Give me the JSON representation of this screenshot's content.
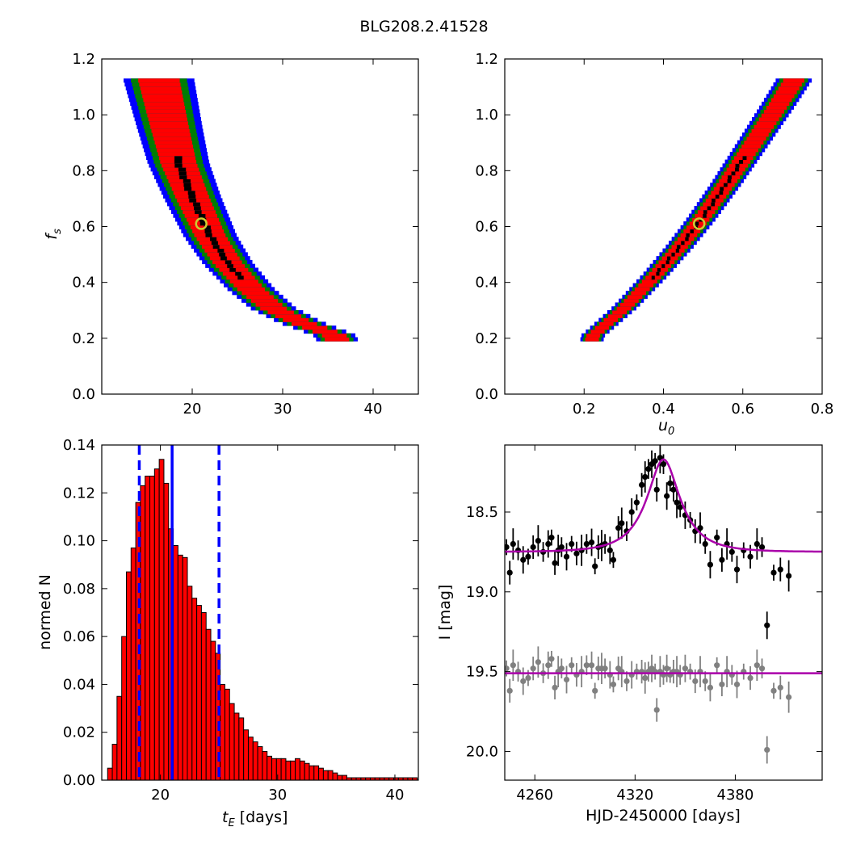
{
  "suptitle": "BLG208.2.41528",
  "chart_data": [
    {
      "id": "fs_vs_tE",
      "type": "heatmap",
      "title": "",
      "xlabel": "",
      "ylabel": "f_s",
      "xlim": [
        10,
        45
      ],
      "ylim": [
        0.0,
        1.2
      ],
      "xticks": [
        "20",
        "30",
        "40"
      ],
      "yticks": [
        "0.0",
        "0.2",
        "0.4",
        "0.6",
        "0.8",
        "1.0",
        "1.2"
      ],
      "confidence_colors": [
        "#000000",
        "#ff0000",
        "#007f00",
        "#0000ff"
      ],
      "best_fit": {
        "x": 21.0,
        "y": 0.61
      },
      "ridge": [
        [
          16.3,
          1.12
        ],
        [
          17.5,
          0.95
        ],
        [
          18.5,
          0.82
        ],
        [
          20.0,
          0.7
        ],
        [
          22.0,
          0.56
        ],
        [
          24.0,
          0.46
        ],
        [
          26.5,
          0.37
        ],
        [
          29.0,
          0.3
        ],
        [
          32.0,
          0.25
        ],
        [
          34.5,
          0.22
        ],
        [
          36.0,
          0.2
        ]
      ]
    },
    {
      "id": "fs_vs_u0",
      "type": "heatmap",
      "title": "",
      "xlabel": "u_0",
      "ylabel": "",
      "xlim": [
        0.0,
        0.8
      ],
      "ylim": [
        0.0,
        1.2
      ],
      "xticks": [
        "0.2",
        "0.4",
        "0.6",
        "0.8"
      ],
      "yticks": [
        "0.0",
        "0.2",
        "0.4",
        "0.6",
        "0.8",
        "1.0",
        "1.2"
      ],
      "confidence_colors": [
        "#000000",
        "#ff0000",
        "#007f00",
        "#0000ff"
      ],
      "best_fit": {
        "x": 0.49,
        "y": 0.61
      },
      "ridge": [
        [
          0.22,
          0.2
        ],
        [
          0.3,
          0.3
        ],
        [
          0.38,
          0.42
        ],
        [
          0.44,
          0.52
        ],
        [
          0.49,
          0.61
        ],
        [
          0.56,
          0.75
        ],
        [
          0.63,
          0.9
        ],
        [
          0.69,
          1.03
        ],
        [
          0.73,
          1.12
        ]
      ]
    },
    {
      "id": "tE_histogram",
      "type": "bar",
      "title": "",
      "xlabel": "t_E [days]",
      "ylabel": "normed N",
      "xlim": [
        15,
        42
      ],
      "ylim": [
        0.0,
        0.14
      ],
      "xticks": [
        "20",
        "30",
        "40"
      ],
      "yticks": [
        "0.00",
        "0.02",
        "0.04",
        "0.06",
        "0.08",
        "0.10",
        "0.12",
        "0.14"
      ],
      "bar_color": "#ff0000",
      "bin_start": 15.5,
      "bin_width": 0.4,
      "values": [
        0.005,
        0.015,
        0.035,
        0.06,
        0.087,
        0.097,
        0.116,
        0.123,
        0.127,
        0.127,
        0.13,
        0.134,
        0.124,
        0.105,
        0.098,
        0.094,
        0.093,
        0.081,
        0.076,
        0.073,
        0.07,
        0.063,
        0.058,
        0.053,
        0.04,
        0.038,
        0.032,
        0.028,
        0.026,
        0.021,
        0.018,
        0.016,
        0.014,
        0.012,
        0.01,
        0.009,
        0.009,
        0.009,
        0.008,
        0.008,
        0.009,
        0.008,
        0.007,
        0.006,
        0.006,
        0.005,
        0.004,
        0.004,
        0.003,
        0.002,
        0.002,
        0.001,
        0.001,
        0.001,
        0.001,
        0.001,
        0.001,
        0.001,
        0.001,
        0.001,
        0.001,
        0.001,
        0.001,
        0.001,
        0.001,
        0.001
      ],
      "median": 21.0,
      "bounds": [
        18.2,
        25.0
      ],
      "line_color": "#0000ff"
    },
    {
      "id": "light_curve",
      "type": "scatter",
      "title": "",
      "xlabel": "HJD-2450000 [days]",
      "ylabel": "I [mag]",
      "xlim": [
        4242,
        4432
      ],
      "ylim": [
        20.18,
        18.08
      ],
      "xticks": [
        "4260",
        "4320",
        "4380"
      ],
      "yticks": [
        "18.5",
        "19.0",
        "19.5",
        "20.0"
      ],
      "model": {
        "t0": 4337,
        "u0": 0.49,
        "tE": 21.0,
        "baseline": 18.75,
        "peak": 18.17,
        "color": "#aa00aa"
      },
      "residual_offset": 19.51,
      "series": [
        {
          "name": "",
          "color": "#000000",
          "x": [
            4243,
            4245,
            4247,
            4250,
            4253,
            4256,
            4259,
            4262,
            4265,
            4268,
            4270,
            4272,
            4274,
            4276,
            4279,
            4282,
            4285,
            4288,
            4291,
            4294,
            4296,
            4298,
            4300,
            4302,
            4305,
            4307,
            4310,
            4312,
            4315,
            4318,
            4321,
            4324,
            4326,
            4328,
            4330,
            4332,
            4333,
            4335,
            4337,
            4339,
            4341,
            4343,
            4345,
            4347,
            4350,
            4353,
            4356,
            4359,
            4362,
            4365,
            4369,
            4372,
            4375,
            4378,
            4381,
            4385,
            4389,
            4393,
            4396,
            4399,
            4403,
            4407,
            4412
          ],
          "y": [
            18.72,
            18.88,
            18.7,
            18.74,
            18.8,
            18.78,
            18.72,
            18.68,
            18.75,
            18.7,
            18.66,
            18.82,
            18.74,
            18.72,
            18.78,
            18.7,
            18.76,
            18.74,
            18.7,
            18.69,
            18.84,
            18.72,
            18.71,
            18.7,
            18.74,
            18.8,
            18.6,
            18.57,
            18.62,
            18.5,
            18.44,
            18.33,
            18.28,
            18.23,
            18.2,
            18.18,
            18.36,
            18.16,
            18.2,
            18.4,
            18.32,
            18.36,
            18.44,
            18.47,
            18.52,
            18.55,
            18.62,
            18.6,
            18.7,
            18.83,
            18.66,
            18.8,
            18.7,
            18.75,
            18.86,
            18.74,
            18.78,
            18.7,
            18.72,
            19.21,
            18.88,
            18.86,
            18.9
          ]
        },
        {
          "name": "",
          "color": "#808080",
          "x": [
            4243,
            4245,
            4247,
            4250,
            4253,
            4256,
            4259,
            4262,
            4265,
            4268,
            4270,
            4272,
            4274,
            4276,
            4279,
            4282,
            4285,
            4288,
            4291,
            4294,
            4296,
            4298,
            4300,
            4302,
            4305,
            4307,
            4310,
            4312,
            4315,
            4318,
            4321,
            4324,
            4326,
            4328,
            4330,
            4332,
            4333,
            4335,
            4337,
            4339,
            4341,
            4343,
            4345,
            4347,
            4350,
            4353,
            4356,
            4359,
            4362,
            4365,
            4369,
            4372,
            4375,
            4378,
            4381,
            4385,
            4389,
            4393,
            4396,
            4399,
            4403,
            4407,
            4412
          ],
          "y": [
            19.48,
            19.62,
            19.46,
            19.5,
            19.56,
            19.54,
            19.48,
            19.44,
            19.51,
            19.46,
            19.42,
            19.6,
            19.5,
            19.48,
            19.55,
            19.46,
            19.52,
            19.5,
            19.46,
            19.46,
            19.62,
            19.48,
            19.48,
            19.48,
            19.52,
            19.58,
            19.48,
            19.5,
            19.56,
            19.52,
            19.5,
            19.5,
            19.54,
            19.5,
            19.48,
            19.5,
            19.74,
            19.5,
            19.52,
            19.48,
            19.52,
            19.5,
            19.5,
            19.52,
            19.48,
            19.5,
            19.56,
            19.5,
            19.56,
            19.6,
            19.46,
            19.58,
            19.5,
            19.52,
            19.58,
            19.5,
            19.54,
            19.46,
            19.48,
            19.99,
            19.62,
            19.6,
            19.66
          ]
        }
      ]
    }
  ]
}
